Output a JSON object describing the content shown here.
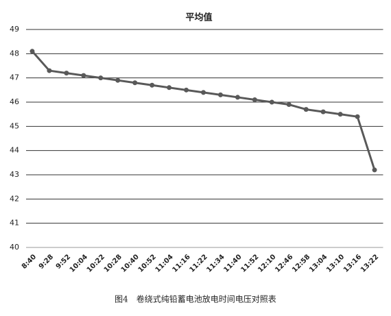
{
  "chart_data": {
    "type": "line",
    "title": "平均值",
    "caption": "图4　卷绕式纯铅蓄电池放电时间电压对照表",
    "categories": [
      "8:40",
      "9:28",
      "9:52",
      "10:04",
      "10:22",
      "10:28",
      "10:40",
      "10:52",
      "11:04",
      "11:16",
      "11:22",
      "11:34",
      "11:40",
      "11:52",
      "12:10",
      "12:46",
      "12:58",
      "13:04",
      "13:10",
      "13:16",
      "13:22"
    ],
    "series": [
      {
        "name": "平均值",
        "color": "#595959",
        "values": [
          48.1,
          47.3,
          47.2,
          47.1,
          47.0,
          46.9,
          46.8,
          46.7,
          46.6,
          46.5,
          46.4,
          46.3,
          46.2,
          46.1,
          46.0,
          45.9,
          45.7,
          45.6,
          45.5,
          45.4,
          43.2
        ]
      }
    ],
    "ylim": [
      40,
      49
    ],
    "yticks": [
      40,
      41,
      42,
      43,
      44,
      45,
      46,
      47,
      48,
      49
    ],
    "grid": true
  }
}
